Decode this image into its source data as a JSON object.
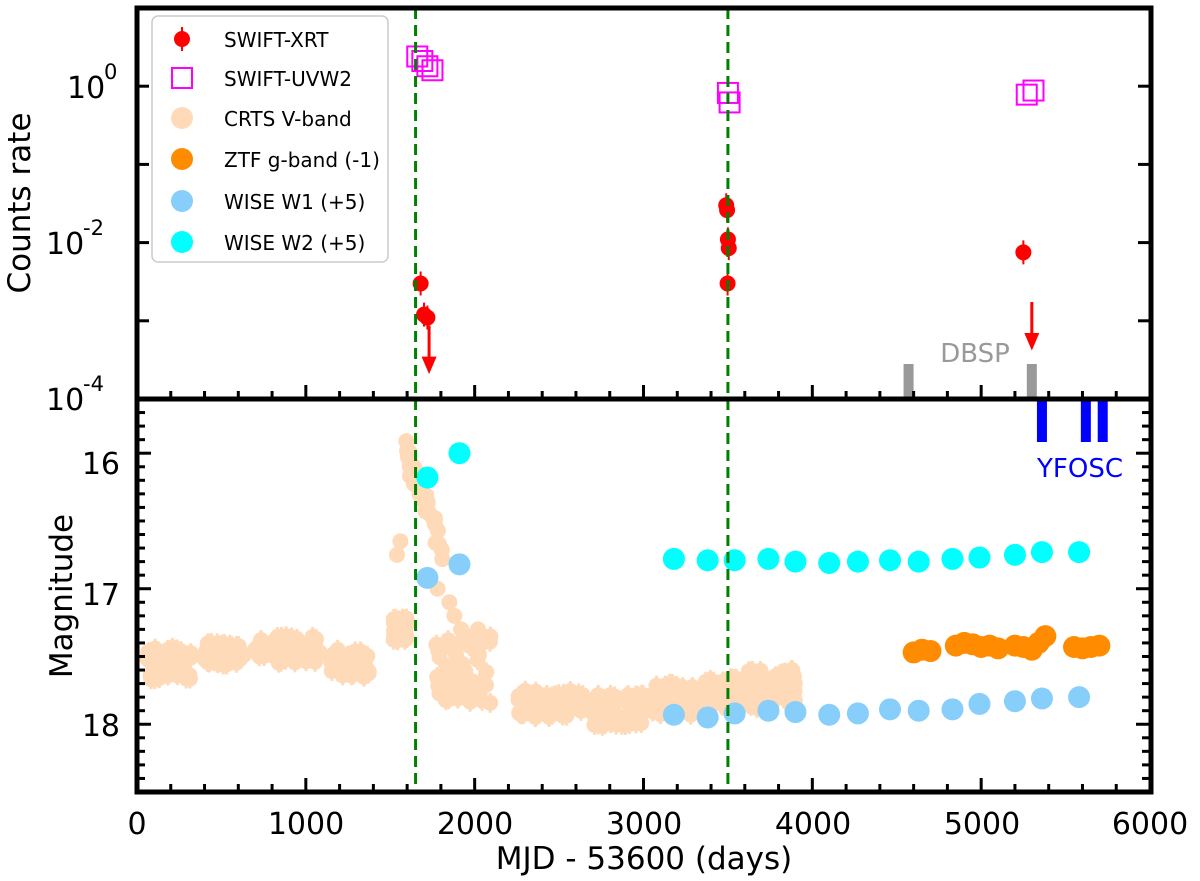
{
  "chart_data": [
    {
      "panel": "top",
      "type": "scatter",
      "ylabel": "Counts rate",
      "yscale": "log",
      "xlim": [
        0,
        6000
      ],
      "ylim_log10": [
        -4,
        1
      ],
      "ytick_exponents": [
        "0",
        "-2",
        "-4"
      ],
      "ytick_values": [
        0,
        -2,
        -4
      ],
      "series": [
        {
          "name": "SWIFT-XRT",
          "marker": "filled-circle-errorbar",
          "color": "#ff0000",
          "points": [
            {
              "x": 1680,
              "y": 0.003
            },
            {
              "x": 1700,
              "y": 0.0012
            },
            {
              "x": 1720,
              "y": 0.0011
            },
            {
              "x": 3490,
              "y": 0.03
            },
            {
              "x": 3495,
              "y": 0.026
            },
            {
              "x": 3500,
              "y": 0.011
            },
            {
              "x": 3505,
              "y": 0.0085
            },
            {
              "x": 3498,
              "y": 0.003
            },
            {
              "x": 5250,
              "y": 0.0075
            }
          ],
          "upper_limits": [
            {
              "x": 1730,
              "y": 0.0011
            },
            {
              "x": 5300,
              "y": 0.0022
            }
          ]
        },
        {
          "name": "SWIFT-UVW2",
          "marker": "open-square",
          "color": "#ff00ff",
          "points": [
            {
              "x": 1660,
              "y": 2.4
            },
            {
              "x": 1690,
              "y": 2.1
            },
            {
              "x": 1720,
              "y": 1.8
            },
            {
              "x": 1750,
              "y": 1.6
            },
            {
              "x": 3500,
              "y": 0.82
            },
            {
              "x": 3510,
              "y": 0.62
            },
            {
              "x": 5270,
              "y": 0.78
            },
            {
              "x": 5310,
              "y": 0.88
            }
          ]
        }
      ],
      "annotations": [
        {
          "text": "DBSP",
          "color": "#999999",
          "x": 4860,
          "markers_x": [
            4570,
            5300
          ]
        }
      ]
    },
    {
      "panel": "bottom",
      "type": "scatter",
      "xlabel": "MJD - 53600 (days)",
      "ylabel": "Magnitude",
      "xlim": [
        0,
        6000
      ],
      "ylim": [
        18.5,
        15.6
      ],
      "y_inverted": true,
      "yticks": [
        "16",
        "17",
        "18"
      ],
      "ytick_values": [
        16,
        17,
        18
      ],
      "xticks": [
        "0",
        "1000",
        "2000",
        "3000",
        "4000",
        "5000",
        "6000"
      ],
      "xtick_values": [
        0,
        1000,
        2000,
        3000,
        4000,
        5000,
        6000
      ],
      "vlines_x": [
        1650,
        3500
      ],
      "series": [
        {
          "name": "CRTS V-band",
          "color": "#ffdab9",
          "note": "dense cloud of points with errorbars"
        },
        {
          "name": "ZTF g-band (-1)",
          "color": "#ff8c00",
          "points": [
            {
              "x": 4600,
              "y": 17.47
            },
            {
              "x": 4650,
              "y": 17.45
            },
            {
              "x": 4700,
              "y": 17.46
            },
            {
              "x": 4850,
              "y": 17.42
            },
            {
              "x": 4900,
              "y": 17.4
            },
            {
              "x": 4950,
              "y": 17.41
            },
            {
              "x": 5000,
              "y": 17.43
            },
            {
              "x": 5050,
              "y": 17.42
            },
            {
              "x": 5100,
              "y": 17.44
            },
            {
              "x": 5200,
              "y": 17.42
            },
            {
              "x": 5250,
              "y": 17.43
            },
            {
              "x": 5300,
              "y": 17.45
            },
            {
              "x": 5340,
              "y": 17.4
            },
            {
              "x": 5380,
              "y": 17.35
            },
            {
              "x": 5550,
              "y": 17.43
            },
            {
              "x": 5600,
              "y": 17.44
            },
            {
              "x": 5650,
              "y": 17.43
            },
            {
              "x": 5700,
              "y": 17.42
            }
          ]
        },
        {
          "name": "WISE W1 (+5)",
          "color": "#87cefa",
          "points": [
            {
              "x": 1720,
              "y": 16.92
            },
            {
              "x": 1910,
              "y": 16.82
            },
            {
              "x": 3180,
              "y": 17.93
            },
            {
              "x": 3380,
              "y": 17.95
            },
            {
              "x": 3540,
              "y": 17.92
            },
            {
              "x": 3740,
              "y": 17.9
            },
            {
              "x": 3900,
              "y": 17.91
            },
            {
              "x": 4100,
              "y": 17.93
            },
            {
              "x": 4270,
              "y": 17.92
            },
            {
              "x": 4460,
              "y": 17.89
            },
            {
              "x": 4630,
              "y": 17.9
            },
            {
              "x": 4830,
              "y": 17.89
            },
            {
              "x": 4990,
              "y": 17.85
            },
            {
              "x": 5200,
              "y": 17.83
            },
            {
              "x": 5360,
              "y": 17.81
            },
            {
              "x": 5580,
              "y": 17.8
            }
          ]
        },
        {
          "name": "WISE W2 (+5)",
          "color": "#00ffff",
          "points": [
            {
              "x": 1720,
              "y": 16.18
            },
            {
              "x": 1910,
              "y": 16.0
            },
            {
              "x": 3180,
              "y": 16.78
            },
            {
              "x": 3380,
              "y": 16.79
            },
            {
              "x": 3540,
              "y": 16.79
            },
            {
              "x": 3740,
              "y": 16.78
            },
            {
              "x": 3900,
              "y": 16.8
            },
            {
              "x": 4100,
              "y": 16.81
            },
            {
              "x": 4270,
              "y": 16.8
            },
            {
              "x": 4460,
              "y": 16.79
            },
            {
              "x": 4630,
              "y": 16.8
            },
            {
              "x": 4830,
              "y": 16.78
            },
            {
              "x": 4990,
              "y": 16.77
            },
            {
              "x": 5200,
              "y": 16.75
            },
            {
              "x": 5360,
              "y": 16.73
            },
            {
              "x": 5580,
              "y": 16.73
            }
          ]
        }
      ],
      "annotations": [
        {
          "text": "YFOSC",
          "color": "#0000ff",
          "x": 5380,
          "markers_x": [
            5360,
            5620,
            5720
          ]
        }
      ]
    }
  ],
  "text": {
    "xlabel": "MJD - 53600 (days)",
    "ylabel_top": "Counts rate",
    "ylabel_bottom": "Magnitude",
    "dbsp": "DBSP",
    "yfosc": "YFOSC",
    "tick_base": "10"
  },
  "legend": {
    "placement": "top-left",
    "entries": [
      {
        "label": "SWIFT-XRT",
        "marker": "errorbar",
        "color": "#ff0000"
      },
      {
        "label": "SWIFT-UVW2",
        "marker": "open-square",
        "color": "#ff00ff"
      },
      {
        "label": "CRTS V-band",
        "marker": "circle",
        "color": "#ffdab9"
      },
      {
        "label": "ZTF g-band (-1)",
        "marker": "circle",
        "color": "#ff8c00"
      },
      {
        "label": "WISE W1 (+5)",
        "marker": "circle",
        "color": "#87cefa"
      },
      {
        "label": "WISE W2 (+5)",
        "marker": "circle",
        "color": "#00ffff"
      }
    ]
  },
  "colors": {
    "vline": "#008000",
    "dbsp": "#999999",
    "yfosc": "#0000ff",
    "axis": "#000000"
  }
}
